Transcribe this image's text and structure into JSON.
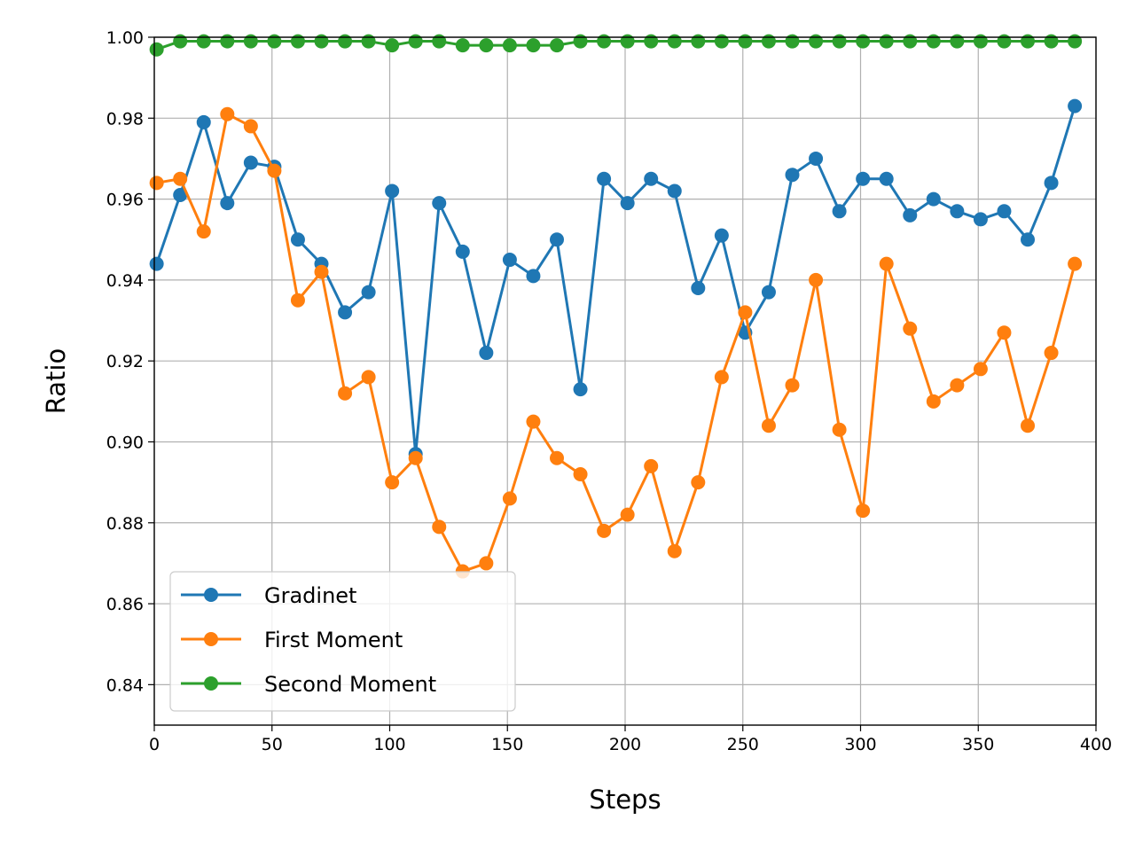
{
  "chart_data": {
    "type": "line",
    "title": "",
    "xlabel": "Steps",
    "ylabel": "Ratio",
    "xlim": [
      0,
      400
    ],
    "ylim": [
      0.83,
      1.0
    ],
    "xticks": [
      0,
      50,
      100,
      150,
      200,
      250,
      300,
      350,
      400
    ],
    "yticks": [
      0.84,
      0.86,
      0.88,
      0.9,
      0.92,
      0.94,
      0.96,
      0.98,
      1.0
    ],
    "xtick_labels": [
      "0",
      "50",
      "100",
      "150",
      "200",
      "250",
      "300",
      "350",
      "400"
    ],
    "ytick_labels": [
      "0.84",
      "0.86",
      "0.88",
      "0.90",
      "0.92",
      "0.94",
      "0.96",
      "0.98",
      "1.00"
    ],
    "grid": true,
    "legend_position": "lower-left",
    "x": [
      1,
      11,
      21,
      31,
      41,
      51,
      61,
      71,
      81,
      91,
      101,
      111,
      121,
      131,
      141,
      151,
      161,
      171,
      181,
      191,
      201,
      211,
      221,
      231,
      241,
      251,
      261,
      271,
      281,
      291,
      301,
      311,
      321,
      331,
      341,
      351,
      361,
      371,
      381,
      391
    ],
    "series": [
      {
        "name": "Gradinet",
        "color": "#1f77b4",
        "values": [
          0.944,
          0.961,
          0.979,
          0.959,
          0.969,
          0.968,
          0.95,
          0.944,
          0.932,
          0.937,
          0.962,
          0.897,
          0.959,
          0.947,
          0.922,
          0.945,
          0.941,
          0.95,
          0.913,
          0.965,
          0.959,
          0.965,
          0.962,
          0.938,
          0.951,
          0.927,
          0.937,
          0.966,
          0.97,
          0.957,
          0.965,
          0.965,
          0.956,
          0.96,
          0.957,
          0.955,
          0.957,
          0.95,
          0.964,
          0.983
        ]
      },
      {
        "name": "First Moment",
        "color": "#ff7f0e",
        "values": [
          0.964,
          0.965,
          0.952,
          0.981,
          0.978,
          0.967,
          0.935,
          0.942,
          0.912,
          0.916,
          0.89,
          0.896,
          0.879,
          0.868,
          0.87,
          0.886,
          0.905,
          0.896,
          0.892,
          0.878,
          0.882,
          0.894,
          0.873,
          0.89,
          0.916,
          0.932,
          0.904,
          0.914,
          0.94,
          0.903,
          0.883,
          0.944,
          0.928,
          0.91,
          0.914,
          0.918,
          0.927,
          0.904,
          0.922,
          0.944
        ]
      },
      {
        "name": "Second Moment",
        "color": "#2ca02c",
        "values": [
          0.997,
          0.999,
          0.999,
          0.999,
          0.999,
          0.999,
          0.999,
          0.999,
          0.999,
          0.999,
          0.998,
          0.999,
          0.999,
          0.998,
          0.998,
          0.998,
          0.998,
          0.998,
          0.999,
          0.999,
          0.999,
          0.999,
          0.999,
          0.999,
          0.999,
          0.999,
          0.999,
          0.999,
          0.999,
          0.999,
          0.999,
          0.999,
          0.999,
          0.999,
          0.999,
          0.999,
          0.999,
          0.999,
          0.999,
          0.999
        ]
      }
    ]
  }
}
